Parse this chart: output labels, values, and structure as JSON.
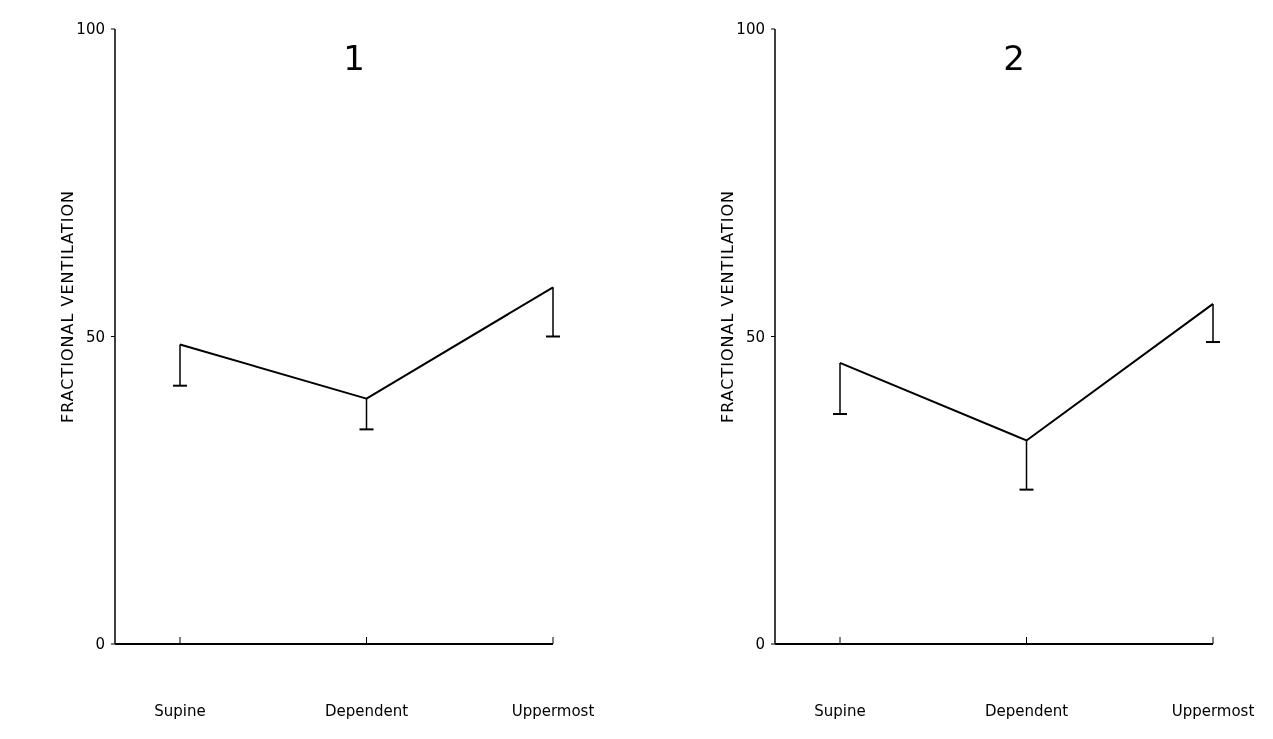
{
  "chart_data": [
    {
      "type": "line",
      "title": "1",
      "ylabel": "FRACTIONAL VENTILATION",
      "categories": [
        "Supine",
        "Dependent",
        "Uppermost"
      ],
      "values": [
        48.7,
        39.9,
        58.0
      ],
      "errors": [
        [
          42.0,
          48.7
        ],
        [
          34.9,
          39.9
        ],
        [
          50.0,
          58.0
        ]
      ],
      "color": "#000000",
      "ylim": [
        0,
        100
      ],
      "yticks": [
        0,
        50,
        100
      ],
      "grid": false,
      "marker": "none"
    },
    {
      "type": "line",
      "title": "2",
      "ylabel": "FRACTIONAL VENTILATION",
      "categories": [
        "Supine",
        "Dependent",
        "Uppermost"
      ],
      "values": [
        45.7,
        33.1,
        55.3
      ],
      "errors": [
        [
          37.4,
          45.7
        ],
        [
          25.1,
          33.1
        ],
        [
          49.1,
          55.3
        ]
      ],
      "color": "#000000",
      "ylim": [
        0,
        100
      ],
      "yticks": [
        0,
        50,
        100
      ],
      "grid": false,
      "marker": "none"
    }
  ]
}
